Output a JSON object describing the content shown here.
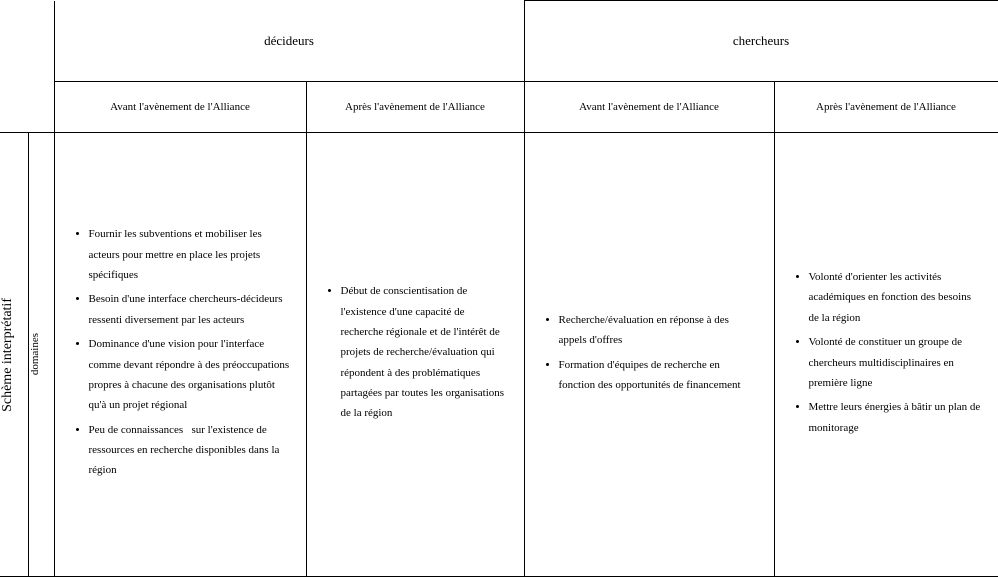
{
  "sideLabels": {
    "scheme": "Schème interprétatif",
    "domains": "domaines"
  },
  "headers": {
    "group1": "décideurs",
    "group2": "chercheurs",
    "before": "Avant l'avènement de l'Alliance",
    "after": "Après l'avènement de l'Alliance"
  },
  "cells": {
    "decideurs_avant": [
      "Fournir les subventions et mobiliser les acteurs pour mettre en place les projets spécifiques",
      "Besoin d'une interface chercheurs-décideurs ressenti diversement par les acteurs",
      "Dominance d'une vision pour l'interface comme devant répondre à des préoccupations propres à chacune des organisations plutôt qu'à un projet régional",
      "Peu de connaissances   sur l'existence de ressources en recherche disponibles dans la région"
    ],
    "decideurs_apres": [
      "Début de conscientisation de l'existence d'une capacité de recherche régionale et de l'intérêt de projets de recherche/évaluation qui répondent à des problématiques partagées par toutes les organisations de la région"
    ],
    "chercheurs_avant": [
      "Recherche/évaluation en réponse à des appels d'offres",
      "Formation d'équipes de recherche en fonction des opportunités de financement"
    ],
    "chercheurs_apres": [
      "Volonté d'orienter les activités académiques en fonction des besoins de la région",
      "Volonté de constituer un groupe de chercheurs multidisciplinaires en première ligne",
      "Mettre leurs énergies à bâtir un plan de monitorage"
    ]
  }
}
